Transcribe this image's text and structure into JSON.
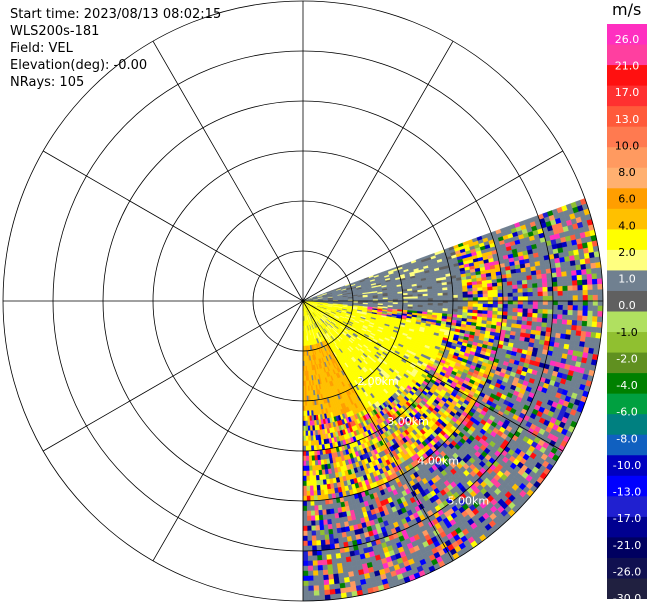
{
  "header": {
    "start_time": "Start time: 2023/08/13 08:02:15",
    "instrument": "WLS200s-181",
    "field": "Field: VEL",
    "elevation": "Elevation(deg): -0.00",
    "nrays": "NRays: 105"
  },
  "chart_data": {
    "type": "heatmap",
    "projection": "polar-ppi",
    "instrument": "WLS200s-181",
    "field": "VEL",
    "units": "m/s",
    "elevation_deg": -0.0,
    "n_rays": 105,
    "azimuth_coverage_deg": [
      70,
      180
    ],
    "range_rings_km": [
      1.0,
      2.0,
      3.0,
      4.0,
      5.0,
      6.0
    ],
    "range_ring_labels": [
      "2.00km",
      "3.00km",
      "4.00km",
      "5.00km"
    ],
    "spoke_interval_deg": 30,
    "colorbar": {
      "unit_label": "m/s",
      "vmin": -30.0,
      "vmax": 30.0,
      "tick_labels": [
        "26.0",
        "21.0",
        "17.0",
        "13.0",
        "10.0",
        "8.0",
        "6.0",
        "4.0",
        "2.0",
        "1.0",
        "0.0",
        "-1.0",
        "-2.0",
        "-4.0",
        "-6.0",
        "-8.0",
        "-10.0",
        "-13.0",
        "-17.0",
        "-21.0",
        "-26.0",
        "-30.0"
      ],
      "colors": [
        "#ff2fc0",
        "#ff3fa0",
        "#ff1010",
        "#ff3030",
        "#ff5a3a",
        "#ff7a50",
        "#ff9a60",
        "#ffb070",
        "#ff9e00",
        "#ffc000",
        "#ffff00",
        "#ffff80",
        "#708090",
        "#606060",
        "#b0e060",
        "#90c030",
        "#609020",
        "#008000",
        "#00a040",
        "#008080",
        "#1060c0",
        "#0000c0",
        "#0000ff",
        "#2020d0",
        "#000090",
        "#000060",
        "#101050",
        "#202040"
      ]
    }
  }
}
